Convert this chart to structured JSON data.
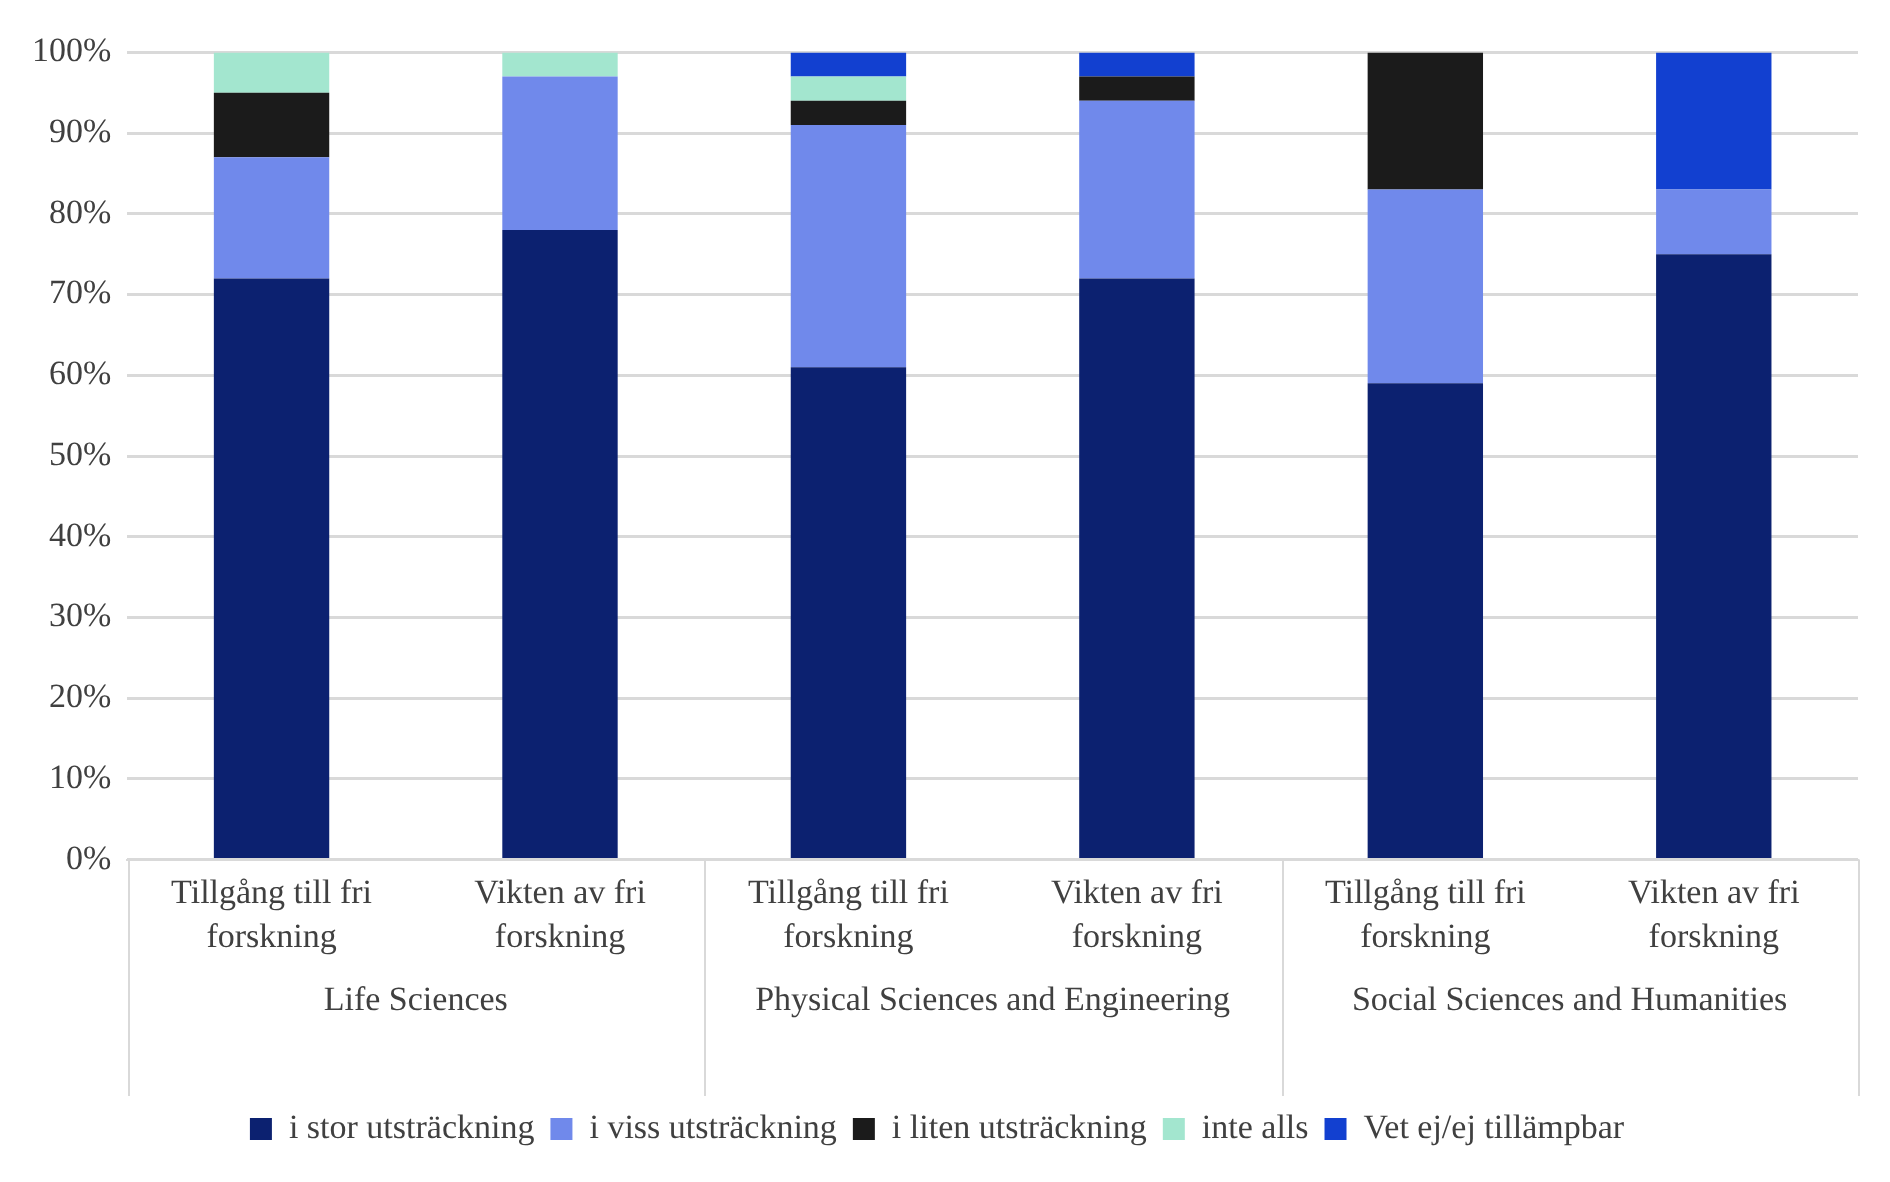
{
  "chart_data": {
    "type": "bar",
    "stacked": true,
    "categories": [
      "Tillgång till fri forskning",
      "Vikten av fri forskning",
      "Tillgång till fri forskning",
      "Vikten av fri forskning",
      "Tillgång till fri forskning",
      "Vikten av fri forskning"
    ],
    "annotations": [
      "Life Sciences",
      "Physical Sciences and Engineering",
      "Social Sciences and Humanities"
    ],
    "series": [
      {
        "name": "i stor utsträckning",
        "color": "#0c2170",
        "values": [
          72,
          78,
          61,
          72,
          59,
          75
        ]
      },
      {
        "name": "i viss utsträckning",
        "color": "#7089eb",
        "values": [
          15,
          19,
          30,
          22,
          24,
          8
        ]
      },
      {
        "name": "i liten utsträckning",
        "color": "#1b1b1b",
        "values": [
          8,
          0,
          3,
          3,
          17,
          0
        ]
      },
      {
        "name": "inte alls",
        "color": "#a3e6cf",
        "values": [
          5,
          3,
          3,
          0,
          0,
          0
        ]
      },
      {
        "name": "Vet ej/ej tillämpbar",
        "color": "#1240d0",
        "values": [
          0,
          0,
          3,
          3,
          0,
          17
        ]
      }
    ],
    "ylim": [
      0,
      100
    ],
    "yticks": [
      {
        "value": 0,
        "label": "0%"
      },
      {
        "value": 10,
        "label": "10%"
      },
      {
        "value": 20,
        "label": "20%"
      },
      {
        "value": 30,
        "label": "30%"
      },
      {
        "value": 40,
        "label": "40%"
      },
      {
        "value": 50,
        "label": "50%"
      },
      {
        "value": 60,
        "label": "60%"
      },
      {
        "value": 70,
        "label": "70%"
      },
      {
        "value": 80,
        "label": "80%"
      },
      {
        "value": 90,
        "label": "90%"
      },
      {
        "value": 100,
        "label": "100%"
      }
    ],
    "grid": "y",
    "legend": "bottom"
  }
}
